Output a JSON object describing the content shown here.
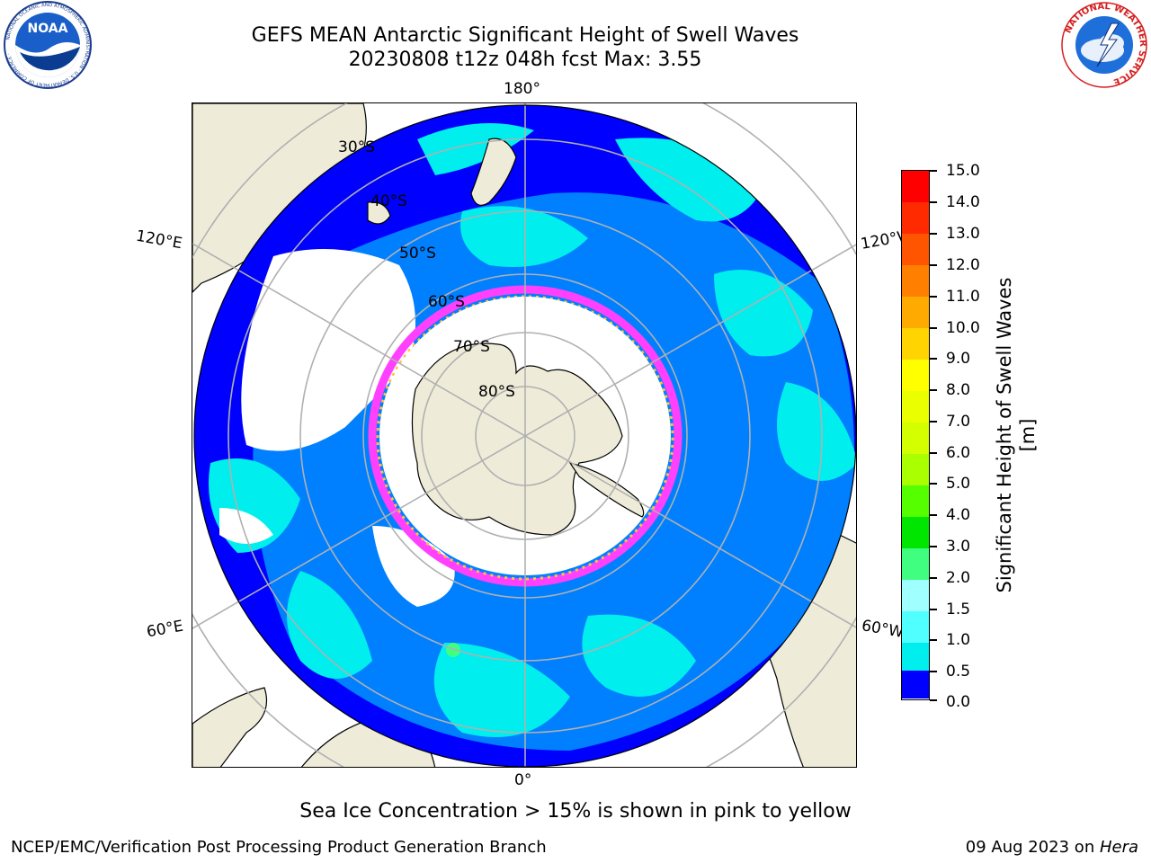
{
  "header": {
    "title_line1": "GEFS MEAN Antarctic Significant Height of Swell Waves",
    "title_line2": "20230808 t12z 048h fcst   Max: 3.55"
  },
  "logos": {
    "noaa_text": "NOAA",
    "noaa_ring_text": "NATIONAL OCEANIC AND ATMOSPHERIC ADMINISTRATION · U.S. DEPARTMENT OF COMMERCE ·",
    "nws_ring_text": "NATIONAL WEATHER SERVICE"
  },
  "map": {
    "projection": "south-polar-stereographic",
    "longitude_labels": {
      "top": "180°",
      "bottom": "0°",
      "upper_left": "120°E",
      "upper_right": "120°W",
      "lower_left": "60°E",
      "lower_right": "60°W"
    },
    "latitude_labels": [
      "30°S",
      "40°S",
      "50°S",
      "60°S",
      "70°S",
      "80°S"
    ],
    "colors": {
      "land": "#eeecd9",
      "ocean_deep": "#0000ff",
      "ocean_mid": "#0080ff",
      "ocean_light": "#00eeee",
      "ice_free_zero": "#ffffff",
      "sea_ice_edge": "#ff40ff",
      "sea_ice_inner": "#ffc040",
      "grid": "#b0b0b0"
    }
  },
  "colorbar": {
    "title": "Significant Height of Swell Waves [m]",
    "tick_labels": [
      "15.0",
      "14.0",
      "13.0",
      "12.0",
      "11.0",
      "10.0",
      "9.0",
      "8.0",
      "7.0",
      "6.0",
      "5.0",
      "4.0",
      "3.0",
      "2.0",
      "1.5",
      "1.0",
      "0.5",
      "0.0"
    ],
    "colors_top_to_bottom": [
      "#ff0000",
      "#ff2a00",
      "#ff5500",
      "#ff8000",
      "#ffaa00",
      "#ffd400",
      "#ffff00",
      "#eaff00",
      "#d4ff00",
      "#aaff00",
      "#55ff00",
      "#00e600",
      "#40ff80",
      "#a0ffff",
      "#50ffff",
      "#00eeee",
      "#0080ff",
      "#0000ff"
    ]
  },
  "note": "Sea Ice Concentration > 15% is shown in pink to yellow",
  "footer": {
    "left": "NCEP/EMC/Verification Post Processing Product Generation Branch",
    "right_prefix": "09 Aug 2023 on ",
    "right_host": "Hera"
  }
}
